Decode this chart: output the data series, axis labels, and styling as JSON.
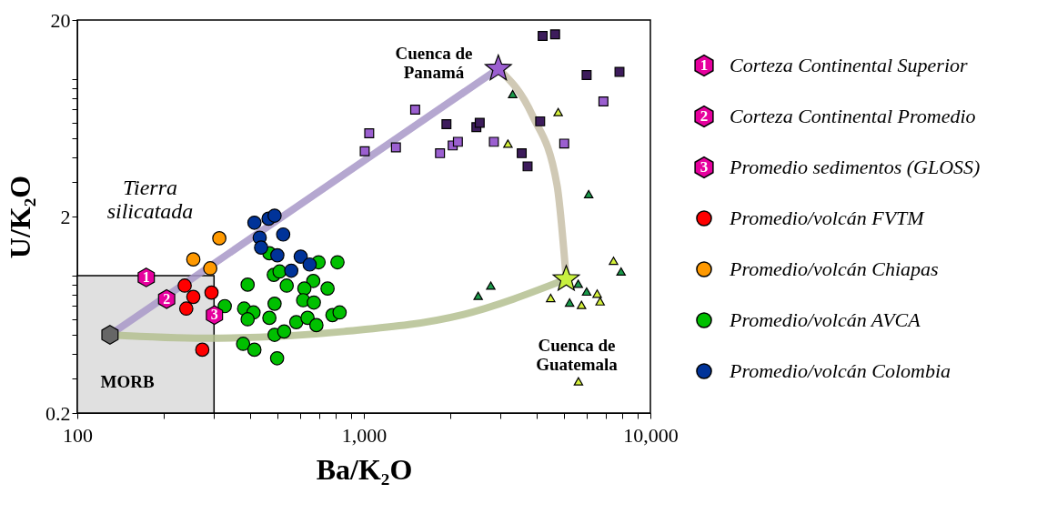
{
  "chart_data": {
    "type": "scatter",
    "xlabel": "Ba/K₂O",
    "ylabel": "U/K₂O",
    "log": "xy",
    "grid": false,
    "legend": "right",
    "xlim": [
      100,
      10000
    ],
    "ylim": [
      0.2,
      20
    ],
    "xticks": [
      100,
      {
        "value": 200,
        "label": null
      },
      {
        "value": 300,
        "label": null
      },
      {
        "value": 400,
        "label": null
      },
      {
        "value": 500,
        "label": null
      },
      {
        "value": 600,
        "label": null
      },
      {
        "value": 700,
        "label": null
      },
      {
        "value": 800,
        "label": null
      },
      {
        "value": 900,
        "label": null
      },
      {
        "value": 1000,
        "label": "1,000"
      },
      {
        "value": 2000,
        "label": null
      },
      {
        "value": 3000,
        "label": null
      },
      {
        "value": 4000,
        "label": null
      },
      {
        "value": 5000,
        "label": null
      },
      {
        "value": 6000,
        "label": null
      },
      {
        "value": 7000,
        "label": null
      },
      {
        "value": 8000,
        "label": null
      },
      {
        "value": 9000,
        "label": null
      },
      {
        "value": 10000,
        "label": "10,000"
      }
    ],
    "yticks": [
      0.2,
      {
        "value": 0.3,
        "label": null
      },
      {
        "value": 0.4,
        "label": null
      },
      {
        "value": 0.5,
        "label": null
      },
      {
        "value": 0.6,
        "label": null
      },
      {
        "value": 0.7,
        "label": null
      },
      {
        "value": 0.8,
        "label": null
      },
      {
        "value": 0.9,
        "label": null
      },
      {
        "value": 1,
        "label": null
      },
      2,
      {
        "value": 3,
        "label": null
      },
      {
        "value": 4,
        "label": null
      },
      {
        "value": 5,
        "label": null
      },
      {
        "value": 6,
        "label": null
      },
      {
        "value": 7,
        "label": null
      },
      {
        "value": 8,
        "label": null
      },
      {
        "value": 9,
        "label": null
      },
      {
        "value": 10,
        "label": null
      },
      20
    ],
    "annotations": [
      "Tierra silicatada",
      "MORB",
      "Cuenca de Panamá",
      "Cuenca de Guatemala",
      {
        "text": "1",
        "x": 174,
        "y": 0.98
      },
      {
        "text": "2",
        "x": 205,
        "y": 0.76
      },
      {
        "text": "3",
        "x": 301,
        "y": 0.63
      }
    ],
    "series": [
      {
        "type": "area",
        "color": "#e0e0e0",
        "x": [
          100,
          300
        ],
        "values": [
          1,
          1
        ]
      },
      {
        "type": "line",
        "color": "#a898c8",
        "x": [
          130,
          2946
        ],
        "values": [
          0.5,
          11.3
        ]
      },
      {
        "type": "line",
        "color": "#b4c090",
        "x": [
          130,
          278,
          853,
          2180,
          5085
        ],
        "values": [
          0.5,
          0.48,
          0.52,
          0.63,
          0.96
        ]
      },
      {
        "type": "line",
        "color": "#c8c0a8",
        "x": [
          2946,
          3882,
          4720,
          5085
        ],
        "values": [
          11.3,
          6.5,
          2.9,
          0.96
        ]
      },
      {
        "color": "#666666",
        "x": [
          130
        ],
        "values": [
          0.5
        ]
      },
      {
        "marker": "circle",
        "name": "Promedio/volcán FVTM",
        "color": "#ff0000",
        "x": [
          237,
          254,
          294,
          240,
          273
        ],
        "values": [
          0.89,
          0.78,
          0.82,
          0.68,
          0.42
        ]
      },
      {
        "marker": "circle",
        "name": "Promedio/volcán Chiapas",
        "color": "#ff9900",
        "x": [
          313,
          254,
          291
        ],
        "values": [
          1.55,
          1.21,
          1.09
        ]
      },
      {
        "marker": "circle",
        "name": "Promedio/volcán AVCA",
        "color": "#00c000",
        "x": [
          468,
          695,
          809,
          485,
          508,
          538,
          393,
          666,
          620,
          747,
          327,
          382,
          412,
          393,
          488,
          614,
          669,
          468,
          581,
          636,
          683,
          777,
          823,
          488,
          527,
          379,
          415,
          498
        ],
        "values": [
          1.3,
          1.17,
          1.17,
          1.01,
          1.05,
          0.89,
          0.9,
          0.94,
          0.86,
          0.86,
          0.7,
          0.68,
          0.65,
          0.6,
          0.72,
          0.75,
          0.73,
          0.61,
          0.58,
          0.61,
          0.56,
          0.63,
          0.65,
          0.5,
          0.52,
          0.45,
          0.42,
          0.38
        ]
      },
      {
        "marker": "circle",
        "name": "Promedio/volcán Colombia",
        "color": "#003399",
        "x": [
          415,
          465,
          488,
          433,
          523,
          438,
          499,
          602,
          647,
          558
        ],
        "values": [
          1.86,
          1.95,
          2.02,
          1.56,
          1.62,
          1.39,
          1.27,
          1.25,
          1.14,
          1.06
        ]
      },
      {
        "name": "Corteza Continental Superior",
        "color": "#e6009e",
        "x": [
          174
        ],
        "values": [
          0.98
        ]
      },
      {
        "name": "Corteza Continental Promedio",
        "color": "#e6009e",
        "x": [
          205
        ],
        "values": [
          0.76
        ]
      },
      {
        "name": "Promedio sedimentos (GLOSS)",
        "color": "#e6009e",
        "x": [
          301
        ],
        "values": [
          0.63
        ]
      },
      {
        "marker": "square",
        "color": "#9b5fd0",
        "x": [
          1510,
          1294,
          1844,
          2042,
          2129,
          2843,
          5003,
          6855,
          1044,
          1007
        ],
        "values": [
          7.0,
          4.5,
          4.2,
          4.6,
          4.8,
          4.8,
          4.7,
          7.7,
          5.3,
          4.3
        ]
      },
      {
        "marker": "square",
        "color": "#3d1c5c",
        "x": [
          4207,
          4650,
          5990,
          7800,
          1942,
          2470,
          2537,
          4124,
          3556,
          3727
        ],
        "values": [
          16.6,
          16.9,
          10.5,
          10.9,
          5.9,
          5.7,
          6.0,
          6.1,
          4.2,
          3.6
        ]
      },
      {
        "marker": "triangle",
        "color": "#1a9a4a",
        "x": [
          3307,
          6090,
          2773,
          2506,
          7900,
          5990,
          5224,
          5600
        ],
        "values": [
          8.4,
          2.6,
          0.89,
          0.79,
          1.05,
          0.83,
          0.73,
          0.91
        ]
      },
      {
        "marker": "triangle",
        "color": "#d4f03a",
        "x": [
          4766,
          3183,
          7436,
          4487,
          6520,
          6675,
          5750,
          5610
        ],
        "values": [
          6.8,
          4.7,
          1.19,
          0.77,
          0.81,
          0.74,
          0.71,
          0.29
        ]
      },
      {
        "marker": "star",
        "color": "#9b5fd0",
        "x": [
          2946
        ],
        "values": [
          11.3
        ]
      },
      {
        "marker": "star",
        "color": "#c8f040",
        "x": [
          5085
        ],
        "values": [
          0.96
        ]
      }
    ]
  }
}
